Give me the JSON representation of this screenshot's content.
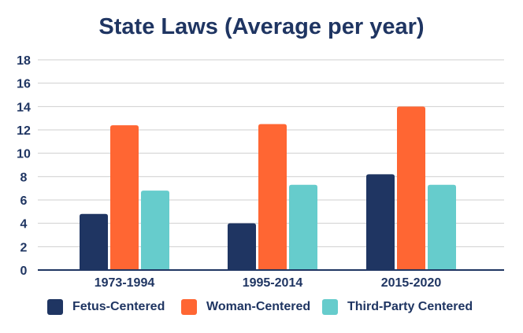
{
  "chart_data": {
    "type": "bar",
    "title": "State Laws (Average per year)",
    "categories": [
      "1973-1994",
      "1995-2014",
      "2015-2020"
    ],
    "series": [
      {
        "name": "Fetus-Centered",
        "values": [
          4.8,
          4.0,
          8.2
        ],
        "color": "#1f3562"
      },
      {
        "name": "Woman-Centered",
        "values": [
          12.4,
          12.5,
          14.0
        ],
        "color": "#ff6633"
      },
      {
        "name": "Third-Party Centered",
        "values": [
          6.8,
          7.3,
          7.3
        ],
        "color": "#66cccc"
      }
    ],
    "ylim": [
      0,
      18
    ],
    "yticks": [
      0,
      2,
      4,
      6,
      8,
      10,
      12,
      14,
      16,
      18
    ],
    "xlabel": "",
    "ylabel": "",
    "grid": true,
    "legend": "bottom"
  }
}
